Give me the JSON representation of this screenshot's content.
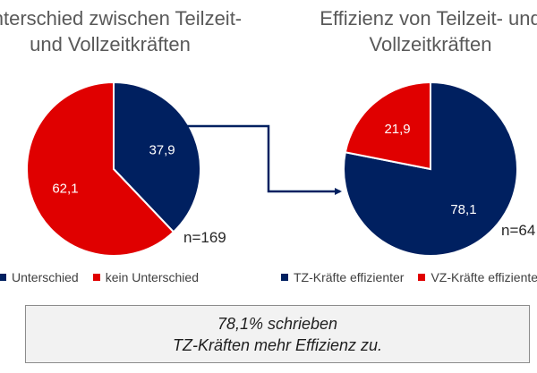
{
  "chart_data": [
    {
      "type": "pie",
      "title_line1": "Unterschied zwischen Teilzeit-",
      "title_line2": "und Vollzeitkräften",
      "n_label": "n=169",
      "slices": [
        {
          "name": "Unterschied",
          "value": 37.9,
          "label": "37,9",
          "color": "#002060"
        },
        {
          "name": "kein Unterschied",
          "value": 62.1,
          "label": "62,1",
          "color": "#e00000"
        }
      ]
    },
    {
      "type": "pie",
      "title_line1": "Effizienz von Teilzeit- und",
      "title_line2": "Vollzeitkräften",
      "n_label": "n=64",
      "slices": [
        {
          "name": "TZ-Kräfte effizienter",
          "value": 78.1,
          "label": "78,1",
          "color": "#002060"
        },
        {
          "name": "VZ-Kräfte effizienter",
          "value": 21.9,
          "label": "21,9",
          "color": "#e00000"
        }
      ]
    }
  ],
  "callout": {
    "line1": "78,1% schrieben",
    "line2": "TZ-Kräften mehr Effizienz zu."
  }
}
